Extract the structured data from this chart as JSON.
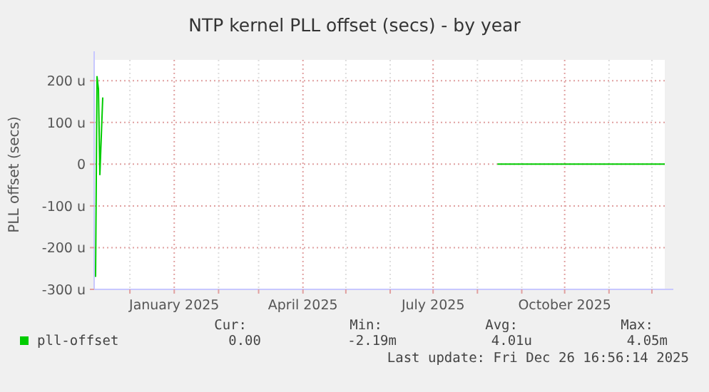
{
  "chart_data": {
    "type": "line",
    "title": "NTP kernel PLL offset (secs) - by year",
    "ylabel": "PLL offset (secs)",
    "x": [
      "2024-11-07",
      "2024-11-08",
      "2024-11-09",
      "2024-11-10",
      "2024-11-12",
      "2024-11-13",
      "2025-08-15",
      "2025-12-10"
    ],
    "series": [
      {
        "name": "pll-offset",
        "color": "#00cc00",
        "values": [
          -270,
          210,
          180,
          -25,
          160,
          null,
          0,
          0
        ]
      }
    ],
    "xlim": [
      "2024-11-06",
      "2025-12-10"
    ],
    "xticks": [
      {
        "value": "2024-12-01",
        "label": null
      },
      {
        "value": "2025-01-01",
        "label": "January 2025"
      },
      {
        "value": "2025-02-01",
        "label": null
      },
      {
        "value": "2025-03-01",
        "label": null
      },
      {
        "value": "2025-04-01",
        "label": "April 2025"
      },
      {
        "value": "2025-05-01",
        "label": null
      },
      {
        "value": "2025-06-01",
        "label": null
      },
      {
        "value": "2025-07-01",
        "label": "July 2025"
      },
      {
        "value": "2025-08-01",
        "label": null
      },
      {
        "value": "2025-09-01",
        "label": null
      },
      {
        "value": "2025-10-01",
        "label": "October 2025"
      },
      {
        "value": "2025-11-01",
        "label": null
      },
      {
        "value": "2025-12-01",
        "label": null
      }
    ],
    "ylim": [
      -300,
      250
    ],
    "yticks": [
      {
        "value": -300,
        "label": "-300 u"
      },
      {
        "value": -200,
        "label": "-200 u"
      },
      {
        "value": -100,
        "label": "-100 u"
      },
      {
        "value": 0,
        "label": "0"
      },
      {
        "value": 100,
        "label": "100 u"
      },
      {
        "value": 200,
        "label": "200 u"
      }
    ],
    "grid": true,
    "legend": "bottom",
    "annotations": [
      "Cur:",
      "Min:",
      "Avg:",
      "Max:",
      "0.00",
      "-2.19m",
      "4.01u",
      "4.05m",
      "Last update: Fri Dec 26 16:56:14 2025"
    ]
  }
}
